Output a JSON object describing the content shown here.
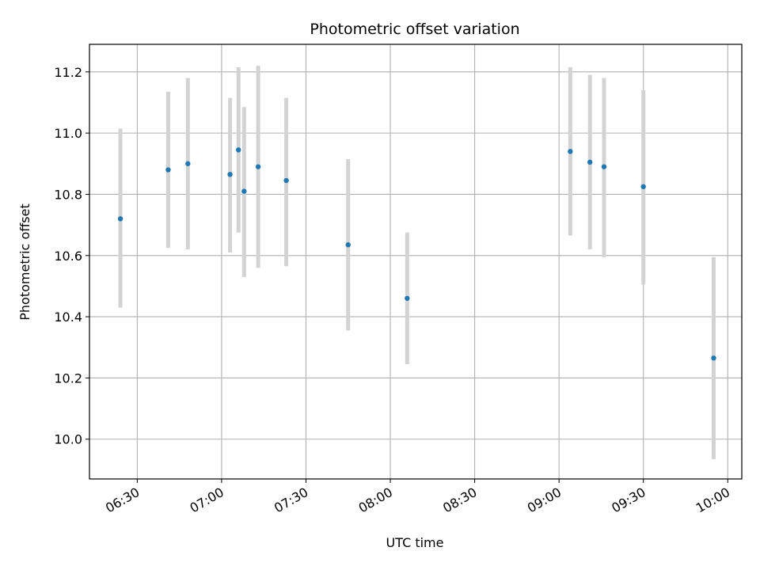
{
  "chart_data": {
    "type": "scatter",
    "title": "Photometric offset variation",
    "xlabel": "UTC time",
    "ylabel": "Photometric offset",
    "grid": true,
    "x_ticks": [
      "06:30",
      "07:00",
      "07:30",
      "08:00",
      "08:30",
      "09:00",
      "09:30",
      "10:00"
    ],
    "y_ticks": [
      "10.0",
      "10.2",
      "10.4",
      "10.6",
      "10.8",
      "11.0",
      "11.2"
    ],
    "xlim": [
      "06:13",
      "10:05"
    ],
    "ylim": [
      9.87,
      11.29
    ],
    "series": [
      {
        "marker_color": "#1f77b4",
        "errorbar_color": "#d3d3d3",
        "points": [
          {
            "t": "06:24",
            "y": 10.72,
            "lo": 10.43,
            "hi": 11.015
          },
          {
            "t": "06:41",
            "y": 10.88,
            "lo": 10.625,
            "hi": 11.135
          },
          {
            "t": "06:48",
            "y": 10.9,
            "lo": 10.62,
            "hi": 11.18
          },
          {
            "t": "07:03",
            "y": 10.865,
            "lo": 10.61,
            "hi": 11.115
          },
          {
            "t": "07:06",
            "y": 10.945,
            "lo": 10.675,
            "hi": 11.215
          },
          {
            "t": "07:08",
            "y": 10.81,
            "lo": 10.53,
            "hi": 11.085
          },
          {
            "t": "07:13",
            "y": 10.89,
            "lo": 10.56,
            "hi": 11.22
          },
          {
            "t": "07:23",
            "y": 10.845,
            "lo": 10.565,
            "hi": 11.115
          },
          {
            "t": "07:45",
            "y": 10.635,
            "lo": 10.355,
            "hi": 10.915
          },
          {
            "t": "08:06",
            "y": 10.46,
            "lo": 10.245,
            "hi": 10.675
          },
          {
            "t": "09:04",
            "y": 10.94,
            "lo": 10.665,
            "hi": 11.215
          },
          {
            "t": "09:11",
            "y": 10.905,
            "lo": 10.62,
            "hi": 11.19
          },
          {
            "t": "09:16",
            "y": 10.89,
            "lo": 10.595,
            "hi": 11.18
          },
          {
            "t": "09:30",
            "y": 10.825,
            "lo": 10.505,
            "hi": 11.14
          },
          {
            "t": "09:55",
            "y": 10.265,
            "lo": 9.935,
            "hi": 10.595
          }
        ]
      }
    ]
  }
}
